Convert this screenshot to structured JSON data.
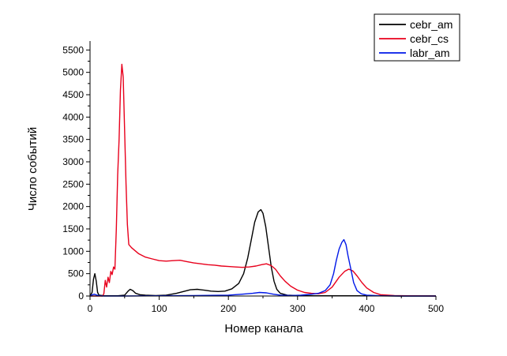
{
  "chart_data": {
    "type": "line",
    "title": "",
    "xlabel": "Номер канала",
    "ylabel": "Число событий",
    "xlim": [
      0,
      500
    ],
    "ylim": [
      0,
      5700
    ],
    "xticks": [
      0,
      100,
      200,
      300,
      400,
      500
    ],
    "yticks": [
      0,
      500,
      1000,
      1500,
      2000,
      2500,
      3000,
      3500,
      4000,
      4500,
      5000,
      5500
    ],
    "grid": false,
    "legend_position": "top-right",
    "series": [
      {
        "name": "cebr_am",
        "color": "#000000",
        "points": [
          [
            0,
            0
          ],
          [
            3,
            80
          ],
          [
            5,
            380
          ],
          [
            7,
            500
          ],
          [
            9,
            330
          ],
          [
            11,
            80
          ],
          [
            13,
            20
          ],
          [
            20,
            5
          ],
          [
            40,
            5
          ],
          [
            50,
            20
          ],
          [
            55,
            110
          ],
          [
            58,
            150
          ],
          [
            62,
            120
          ],
          [
            66,
            60
          ],
          [
            72,
            30
          ],
          [
            80,
            20
          ],
          [
            95,
            10
          ],
          [
            110,
            20
          ],
          [
            125,
            60
          ],
          [
            135,
            100
          ],
          [
            145,
            140
          ],
          [
            155,
            150
          ],
          [
            165,
            130
          ],
          [
            175,
            110
          ],
          [
            185,
            100
          ],
          [
            195,
            110
          ],
          [
            205,
            160
          ],
          [
            215,
            280
          ],
          [
            222,
            500
          ],
          [
            228,
            850
          ],
          [
            233,
            1250
          ],
          [
            238,
            1650
          ],
          [
            243,
            1880
          ],
          [
            247,
            1930
          ],
          [
            250,
            1850
          ],
          [
            254,
            1550
          ],
          [
            258,
            1100
          ],
          [
            262,
            650
          ],
          [
            266,
            330
          ],
          [
            270,
            150
          ],
          [
            275,
            60
          ],
          [
            285,
            20
          ],
          [
            300,
            10
          ],
          [
            330,
            5
          ],
          [
            360,
            5
          ],
          [
            400,
            5
          ],
          [
            450,
            0
          ],
          [
            500,
            0
          ]
        ]
      },
      {
        "name": "cebr_cs",
        "color": "#e8001c",
        "points": [
          [
            0,
            0
          ],
          [
            18,
            0
          ],
          [
            20,
            50
          ],
          [
            22,
            350
          ],
          [
            24,
            200
          ],
          [
            26,
            420
          ],
          [
            28,
            300
          ],
          [
            30,
            550
          ],
          [
            32,
            480
          ],
          [
            34,
            650
          ],
          [
            36,
            600
          ],
          [
            38,
            1500
          ],
          [
            40,
            2700
          ],
          [
            42,
            3500
          ],
          [
            44,
            4600
          ],
          [
            46,
            5180
          ],
          [
            48,
            4900
          ],
          [
            50,
            3700
          ],
          [
            52,
            2500
          ],
          [
            54,
            1600
          ],
          [
            56,
            1150
          ],
          [
            60,
            1080
          ],
          [
            70,
            950
          ],
          [
            80,
            870
          ],
          [
            90,
            830
          ],
          [
            100,
            790
          ],
          [
            110,
            780
          ],
          [
            120,
            790
          ],
          [
            130,
            800
          ],
          [
            140,
            770
          ],
          [
            150,
            740
          ],
          [
            160,
            720
          ],
          [
            170,
            700
          ],
          [
            180,
            690
          ],
          [
            190,
            670
          ],
          [
            200,
            660
          ],
          [
            210,
            650
          ],
          [
            220,
            640
          ],
          [
            230,
            650
          ],
          [
            240,
            670
          ],
          [
            248,
            700
          ],
          [
            255,
            720
          ],
          [
            262,
            680
          ],
          [
            268,
            600
          ],
          [
            275,
            450
          ],
          [
            282,
            330
          ],
          [
            290,
            220
          ],
          [
            300,
            130
          ],
          [
            310,
            80
          ],
          [
            320,
            60
          ],
          [
            330,
            50
          ],
          [
            340,
            80
          ],
          [
            350,
            200
          ],
          [
            360,
            420
          ],
          [
            368,
            550
          ],
          [
            374,
            600
          ],
          [
            380,
            560
          ],
          [
            386,
            450
          ],
          [
            393,
            300
          ],
          [
            400,
            180
          ],
          [
            410,
            80
          ],
          [
            420,
            30
          ],
          [
            440,
            10
          ],
          [
            460,
            5
          ],
          [
            500,
            0
          ]
        ]
      },
      {
        "name": "labr_am",
        "color": "#0018e8",
        "points": [
          [
            0,
            0
          ],
          [
            2,
            20
          ],
          [
            6,
            40
          ],
          [
            10,
            20
          ],
          [
            14,
            5
          ],
          [
            20,
            0
          ],
          [
            50,
            0
          ],
          [
            100,
            5
          ],
          [
            150,
            10
          ],
          [
            200,
            20
          ],
          [
            220,
            40
          ],
          [
            235,
            60
          ],
          [
            245,
            80
          ],
          [
            255,
            70
          ],
          [
            265,
            40
          ],
          [
            275,
            20
          ],
          [
            290,
            10
          ],
          [
            305,
            20
          ],
          [
            320,
            40
          ],
          [
            330,
            60
          ],
          [
            340,
            120
          ],
          [
            347,
            250
          ],
          [
            352,
            500
          ],
          [
            356,
            800
          ],
          [
            360,
            1050
          ],
          [
            364,
            1200
          ],
          [
            367,
            1260
          ],
          [
            370,
            1150
          ],
          [
            373,
            900
          ],
          [
            377,
            600
          ],
          [
            381,
            300
          ],
          [
            386,
            120
          ],
          [
            392,
            50
          ],
          [
            400,
            20
          ],
          [
            420,
            5
          ],
          [
            450,
            0
          ],
          [
            500,
            0
          ]
        ]
      }
    ]
  }
}
